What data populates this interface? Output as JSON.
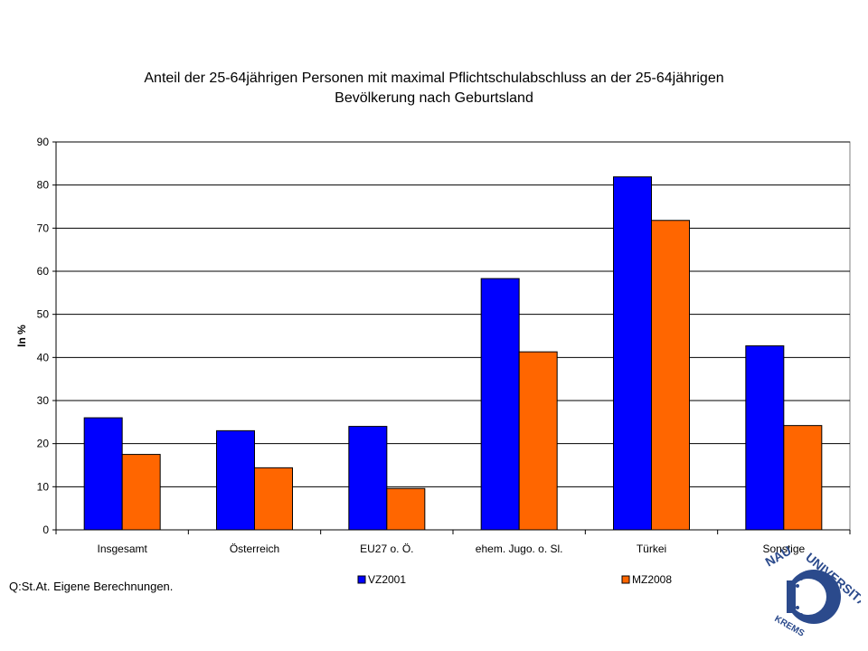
{
  "source_note": "Q:St.At. Eigene Berechnungen.",
  "colors": {
    "series1": "#0000ff",
    "series2": "#ff6600",
    "grid": "#000000"
  },
  "logo": {
    "text_top": "UNIVERSITÄT",
    "text_left": "NAU",
    "text_bottom": "KREMS",
    "color": "#2b4a8c"
  },
  "chart_data": {
    "type": "bar",
    "title_lines": [
      "Anteil der 25-64jährigen  Personen mit maximal Pflichtschulabschluss an der 25-64jährigen",
      "Bevölkerung nach Geburtsland"
    ],
    "ylabel": "In %",
    "xlabel": "",
    "ylim": [
      0,
      90
    ],
    "yticks": [
      0,
      10,
      20,
      30,
      40,
      50,
      60,
      70,
      80,
      90
    ],
    "grid": true,
    "legend_position": "bottom",
    "categories": [
      "Insgesamt",
      "Österreich",
      "EU27 o. Ö.",
      "ehem. Jugo. o. Sl.",
      "Türkei",
      "Sonstige"
    ],
    "series": [
      {
        "name": "VZ2001",
        "values": [
          26.0,
          23.0,
          24.0,
          58.3,
          81.9,
          42.7
        ]
      },
      {
        "name": "MZ2008",
        "values": [
          17.5,
          14.4,
          9.6,
          41.3,
          71.8,
          24.2
        ]
      }
    ]
  }
}
